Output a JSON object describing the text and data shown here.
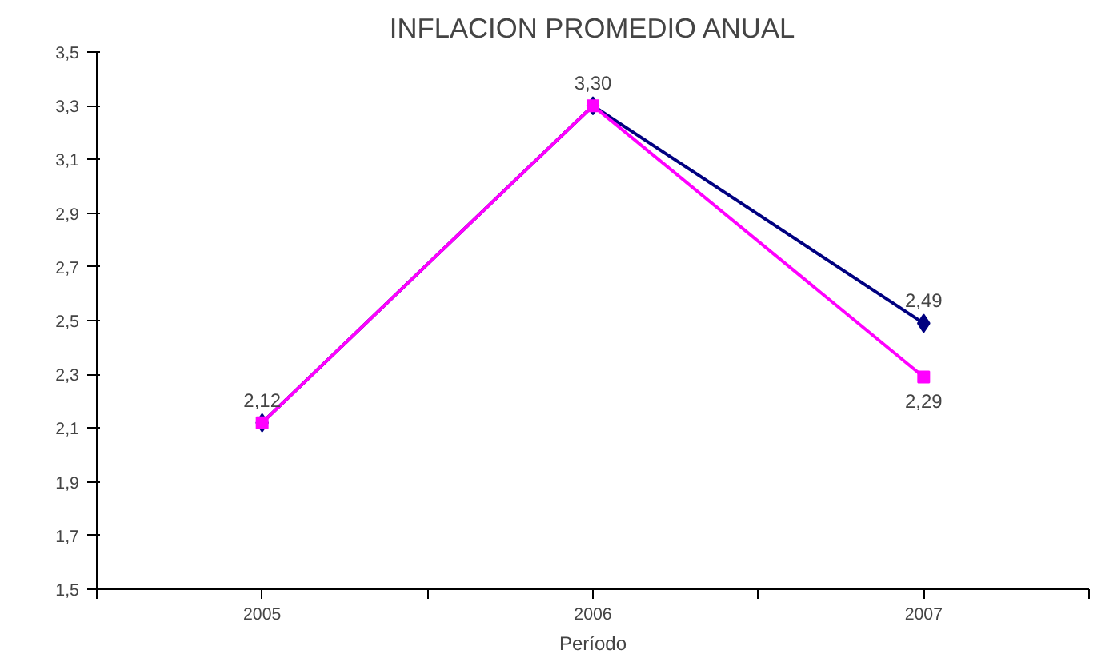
{
  "chart_data": {
    "type": "line",
    "title": "INFLACION PROMEDIO ANUAL",
    "xlabel": "Período",
    "categories": [
      "2005",
      "2006",
      "2007"
    ],
    "series": [
      {
        "color": "#000080",
        "marker": "diamond",
        "values": [
          2.12,
          3.3,
          2.49
        ],
        "value_labels": [
          "2,12",
          "3,30",
          "2,49"
        ]
      },
      {
        "color": "#ff00ff",
        "marker": "square",
        "values": [
          2.12,
          3.3,
          2.29
        ],
        "value_labels": [
          null,
          null,
          "2,29"
        ]
      }
    ],
    "ylim": [
      1.5,
      3.5
    ],
    "yticks": [
      {
        "value": 1.5,
        "label": "1,5"
      },
      {
        "value": 1.7,
        "label": "1,7"
      },
      {
        "value": 1.9,
        "label": "1,9"
      },
      {
        "value": 2.1,
        "label": "2,1"
      },
      {
        "value": 2.3,
        "label": "2,3"
      },
      {
        "value": 2.5,
        "label": "2,5"
      },
      {
        "value": 2.7,
        "label": "2,7"
      },
      {
        "value": 2.9,
        "label": "2,9"
      },
      {
        "value": 3.1,
        "label": "3,1"
      },
      {
        "value": 3.3,
        "label": "3,3"
      },
      {
        "value": 3.5,
        "label": "3,5"
      }
    ],
    "grid": false
  }
}
